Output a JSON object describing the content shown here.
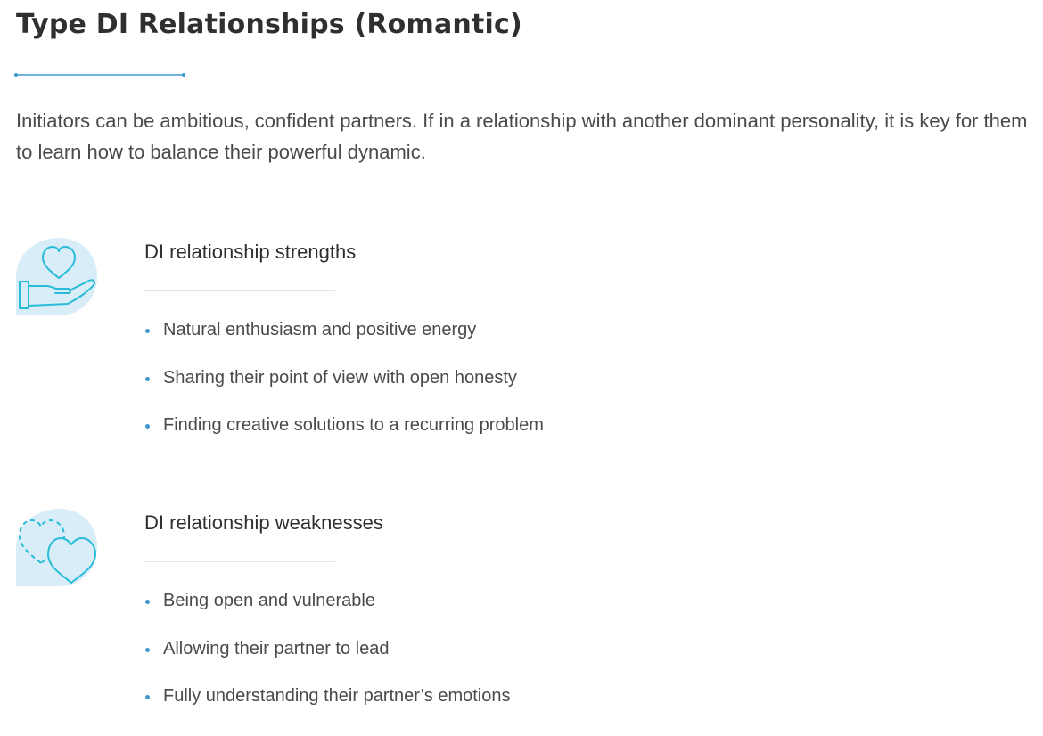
{
  "page": {
    "title": "Type DI Relationships (Romantic)",
    "intro": "Initiators can be ambitious, confident partners. If in a relationship with another dominant personality, it is key for them to learn how to balance their powerful dynamic."
  },
  "colors": {
    "accent": "#3f97cf",
    "icon_bg": "#d8edf8",
    "icon_stroke": "#29bcd9"
  },
  "sections": [
    {
      "icon": "heart-in-hand-icon",
      "title": "DI relationship strengths",
      "items": [
        "Natural enthusiasm and positive energy",
        "Sharing their point of view with open honesty",
        "Finding creative solutions to a recurring problem"
      ]
    },
    {
      "icon": "overlapping-hearts-icon",
      "title": "DI relationship weaknesses",
      "items": [
        "Being open and vulnerable",
        "Allowing their partner to lead",
        "Fully understanding their partner’s emotions"
      ]
    }
  ]
}
